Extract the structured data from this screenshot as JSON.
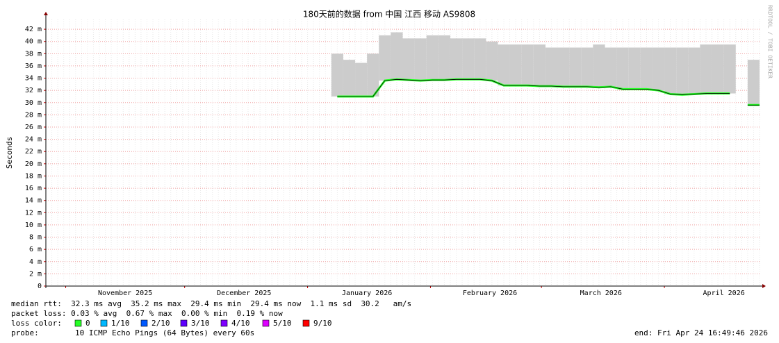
{
  "chart_data": {
    "type": "smokeping",
    "title": "180天前的数据 from  中国 江西 移动 AS9808",
    "y_label": "Seconds",
    "watermark": "RRDTOOL / TOBI OETIKER",
    "x_tick_labels": [
      "November 2025",
      "December 2025",
      "January 2026",
      "February 2026",
      "March 2026",
      "April 2026"
    ],
    "categories": [
      null,
      null,
      null,
      null,
      null,
      null,
      null,
      null,
      null,
      null,
      null,
      null,
      null,
      null,
      null,
      null,
      null,
      null,
      null,
      null,
      null,
      null,
      null,
      null,
      null,
      null,
      null,
      null,
      null,
      null,
      null,
      null,
      null,
      null,
      null,
      null,
      null,
      null,
      null,
      null,
      null,
      null,
      null,
      null,
      null,
      null,
      null,
      null,
      null,
      null,
      null,
      null,
      null,
      null,
      null,
      null,
      null,
      null,
      null,
      null
    ],
    "values": [
      null,
      null,
      null,
      null,
      null,
      null,
      null,
      null,
      null,
      null,
      null,
      null,
      null,
      null,
      null,
      null,
      null,
      null,
      null,
      null,
      null,
      null,
      null,
      null,
      31.0,
      31.0,
      31.0,
      31.0,
      33.6,
      33.8,
      33.7,
      33.6,
      33.7,
      33.7,
      33.8,
      33.8,
      33.8,
      33.6,
      32.8,
      32.8,
      32.8,
      32.7,
      32.7,
      32.6,
      32.6,
      32.6,
      32.5,
      32.6,
      32.2,
      32.2,
      32.2,
      32.0,
      31.4,
      31.3,
      31.4,
      31.5,
      31.5,
      31.5,
      null,
      29.6
    ],
    "max_values": [
      null,
      null,
      null,
      null,
      null,
      null,
      null,
      null,
      null,
      null,
      null,
      null,
      null,
      null,
      null,
      null,
      null,
      null,
      null,
      null,
      null,
      null,
      null,
      null,
      38,
      37,
      36.5,
      38,
      41,
      41.5,
      40.5,
      40.5,
      41,
      41,
      40.5,
      40.5,
      40.5,
      40,
      39.5,
      39.5,
      39.5,
      39.5,
      39,
      39,
      39,
      39,
      39.5,
      39,
      39,
      39,
      39,
      39,
      39,
      39,
      39,
      39.5,
      39.5,
      39.5,
      null,
      37
    ],
    "color": "#26ff26",
    "smoke_color": "#cccccc",
    "ylim": [
      0,
      43.6
    ],
    "yticks": [
      0,
      {
        "value": 2,
        "label": "2 m"
      },
      {
        "value": 4,
        "label": "4 m"
      },
      {
        "value": 6,
        "label": "6 m"
      },
      {
        "value": 8,
        "label": "8 m"
      },
      {
        "value": 10,
        "label": "10 m"
      },
      {
        "value": 12,
        "label": "12 m"
      },
      {
        "value": 14,
        "label": "14 m"
      },
      {
        "value": 16,
        "label": "16 m"
      },
      {
        "value": 18,
        "label": "18 m"
      },
      {
        "value": 20,
        "label": "20 m"
      },
      {
        "value": 22,
        "label": "22 m"
      },
      {
        "value": 24,
        "label": "24 m"
      },
      {
        "value": 26,
        "label": "26 m"
      },
      {
        "value": 28,
        "label": "28 m"
      },
      {
        "value": 30,
        "label": "30 m"
      },
      {
        "value": 32,
        "label": "32 m"
      },
      {
        "value": 34,
        "label": "34 m"
      },
      {
        "value": 36,
        "label": "36 m"
      },
      {
        "value": 38,
        "label": "38 m"
      },
      {
        "value": 40,
        "label": "40 m"
      },
      {
        "value": 42,
        "label": "42 m"
      }
    ],
    "grid": true,
    "stats": [
      "median rtt:  32.3 ms avg  35.2 ms max  29.4 ms min  29.4 ms now  1.1 ms sd  30.2   am/s",
      "packet loss: 0.03 % avg  0.67 % max  0.00 % min  0.19 % now"
    ],
    "loss_label": "loss color:",
    "loss_colors": [
      {
        "name": "0",
        "color": "#26ff26"
      },
      {
        "name": "1/10",
        "color": "#00b8ff"
      },
      {
        "name": "2/10",
        "color": "#0059ff"
      },
      {
        "name": "3/10",
        "color": "#5e00ff"
      },
      {
        "name": "4/10",
        "color": "#7e00ff"
      },
      {
        "name": "5/10",
        "color": "#dd00ff"
      },
      {
        "name": "9/10",
        "color": "#ff0000"
      }
    ],
    "probe_label": "probe:",
    "probe": "10 ICMP Echo Pings (64 Bytes) every 60s",
    "end": "end: Fri Apr 24 16:49:46 2026"
  }
}
